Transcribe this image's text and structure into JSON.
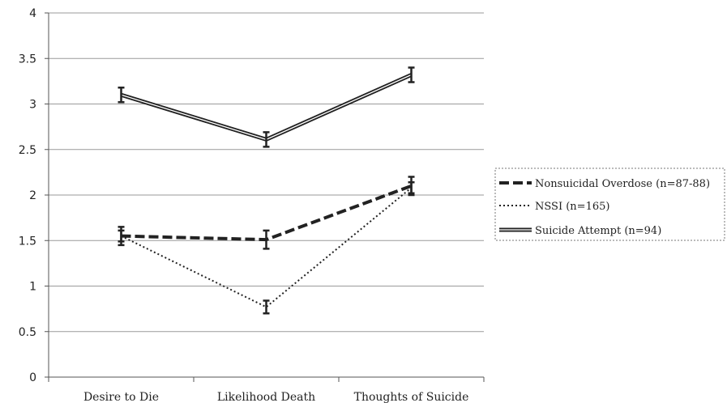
{
  "chart_data": {
    "type": "line",
    "categories": [
      "Desire to Die",
      "Likelihood Death",
      "Thoughts of Suicide"
    ],
    "ylim": [
      0,
      4
    ],
    "yticks": [
      "0",
      "0.5",
      "1",
      "1.5",
      "2",
      "2.5",
      "3",
      "3.5",
      "4"
    ],
    "grid": true,
    "legend_position": "right",
    "series": [
      {
        "name": "Nonsuicidal Overdose (n=87-88)",
        "style": "dashed",
        "color": "#222222",
        "values": [
          1.55,
          1.51,
          2.1
        ],
        "errors": [
          0.1,
          0.1,
          0.1
        ]
      },
      {
        "name": "NSSI (n=165)",
        "style": "dotted",
        "color": "#222222",
        "values": [
          1.55,
          0.77,
          2.08
        ],
        "errors": [
          0.06,
          0.07,
          0.06
        ]
      },
      {
        "name": "Suicide Attempt (n=94)",
        "style": "double",
        "color": "#222222",
        "values": [
          3.1,
          2.61,
          3.32
        ],
        "errors": [
          0.08,
          0.08,
          0.08
        ]
      }
    ]
  }
}
